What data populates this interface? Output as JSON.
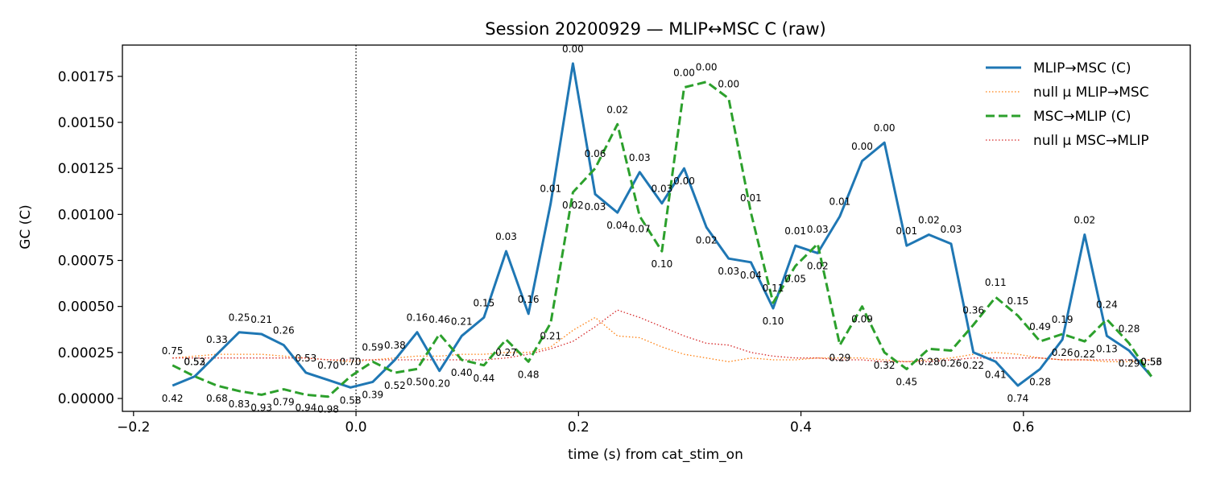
{
  "chart_data": {
    "type": "line",
    "title": "Session 20200929 — MLIP↔MSC C (raw)",
    "xlabel": "time (s) from cat_stim_on",
    "ylabel": "GC (C)",
    "xlim": [
      -0.21,
      0.75
    ],
    "ylim": [
      -7e-05,
      0.00192
    ],
    "x_ticks": [
      -0.2,
      0.0,
      0.2,
      0.4,
      0.6
    ],
    "x_tick_labels": [
      "−0.2",
      "0.0",
      "0.2",
      "0.4",
      "0.6"
    ],
    "y_ticks": [
      0.0,
      0.00025,
      0.0005,
      0.00075,
      0.001,
      0.00125,
      0.0015,
      0.00175
    ],
    "y_tick_labels": [
      "0.00000",
      "0.00025",
      "0.00050",
      "0.00075",
      "0.00100",
      "0.00125",
      "0.00150",
      "0.00175"
    ],
    "grid": false,
    "event_line_x": 0.0,
    "legend_position": "upper-right",
    "x": [
      -0.165,
      -0.145,
      -0.125,
      -0.105,
      -0.085,
      -0.065,
      -0.045,
      -0.025,
      -0.005,
      0.015,
      0.035,
      0.055,
      0.075,
      0.095,
      0.115,
      0.135,
      0.155,
      0.175,
      0.195,
      0.215,
      0.235,
      0.255,
      0.275,
      0.295,
      0.315,
      0.335,
      0.355,
      0.375,
      0.395,
      0.415,
      0.435,
      0.455,
      0.475,
      0.495,
      0.515,
      0.535,
      0.555,
      0.575,
      0.595,
      0.615,
      0.635,
      0.655,
      0.675,
      0.695,
      0.715
    ],
    "series": [
      {
        "name": "MLIP→MSC (C)",
        "color": "#1f77b4",
        "style": "solid",
        "values": [
          7e-05,
          0.00012,
          0.00024,
          0.00036,
          0.00035,
          0.00029,
          0.00014,
          0.0001,
          6e-05,
          9e-05,
          0.00021,
          0.00036,
          0.00015,
          0.00034,
          0.00044,
          0.0008,
          0.00046,
          0.00106,
          0.00182,
          0.00111,
          0.00101,
          0.00123,
          0.00106,
          0.00125,
          0.00093,
          0.00076,
          0.00074,
          0.00049,
          0.00083,
          0.00079,
          0.00099,
          0.00129,
          0.00139,
          0.00083,
          0.00089,
          0.00084,
          0.00025,
          0.0002,
          7e-05,
          0.00016,
          0.00032,
          0.00089,
          0.00034,
          0.00026,
          0.00012
        ],
        "p_values": [
          "0.42",
          "0.53",
          "0.33",
          "0.25",
          "0.21",
          "0.26",
          "0.53",
          "0.70",
          "0.58",
          "0.39",
          "0.38",
          "0.16",
          "0.20",
          "0.21",
          "0.15",
          "0.03",
          "0.16",
          "0.01",
          "0.00",
          "0.03",
          "0.04",
          "0.03",
          "0.03",
          "0.00",
          "0.02",
          "0.03",
          "0.04",
          "0.10",
          "0.01",
          "0.02",
          "0.01",
          "0.00",
          "0.00",
          "0.01",
          "0.02",
          "0.03",
          "0.22",
          "0.41",
          "0.74",
          "0.28",
          "0.26",
          "0.02",
          "0.13",
          "0.29",
          "0.53"
        ]
      },
      {
        "name": "null μ MLIP→MSC",
        "color": "#ff7f0e",
        "style": "dotted",
        "values": [
          0.00022,
          0.00023,
          0.00024,
          0.00024,
          0.00024,
          0.00023,
          0.00022,
          0.00021,
          0.0002,
          0.00021,
          0.00022,
          0.00023,
          0.00023,
          0.00024,
          0.00024,
          0.00025,
          0.00025,
          0.00028,
          0.00037,
          0.00044,
          0.00034,
          0.00033,
          0.00028,
          0.00024,
          0.00022,
          0.0002,
          0.00022,
          0.00021,
          0.00021,
          0.00022,
          0.00022,
          0.00022,
          0.00021,
          0.0002,
          0.00021,
          0.00022,
          0.00024,
          0.00025,
          0.00024,
          0.00022,
          0.00021,
          0.00021,
          0.0002,
          0.0002,
          0.00021
        ]
      },
      {
        "name": "MSC→MLIP (C)",
        "color": "#2ca02c",
        "style": "dashed",
        "values": [
          0.00018,
          0.00012,
          7e-05,
          4e-05,
          2e-05,
          5e-05,
          2e-05,
          1e-05,
          0.00012,
          0.0002,
          0.00014,
          0.00016,
          0.00035,
          0.00021,
          0.00018,
          0.00032,
          0.0002,
          0.00041,
          0.00112,
          0.00125,
          0.00149,
          0.00099,
          0.0008,
          0.00169,
          0.00172,
          0.00163,
          0.00101,
          0.00052,
          0.00072,
          0.00084,
          0.00029,
          0.0005,
          0.00025,
          0.00016,
          0.00027,
          0.00026,
          0.0004,
          0.00055,
          0.00045,
          0.00031,
          0.00035,
          0.00031,
          0.00043,
          0.0003,
          0.00012
        ],
        "p_values": [
          "0.75",
          "0.52",
          "0.68",
          "0.83",
          "0.93",
          "0.79",
          "0.94",
          "0.98",
          "0.70",
          "0.59",
          "0.52",
          "0.50",
          "0.46",
          "0.40",
          "0.44",
          "0.27",
          "0.48",
          "0.21",
          "0.02",
          "0.06",
          "0.02",
          "0.07",
          "0.10",
          "0.00",
          "0.00",
          "0.00",
          "0.01",
          "0.11",
          "0.05",
          "0.03",
          "0.29",
          "0.09",
          "0.32",
          "0.45",
          "0.28",
          "0.26",
          "0.36",
          "0.11",
          "0.15",
          "0.49",
          "0.19",
          "0.22",
          "0.24",
          "0.28",
          "0.56"
        ]
      },
      {
        "name": "null μ MSC→MLIP",
        "color": "#d62728",
        "style": "dotted",
        "values": [
          0.00022,
          0.00022,
          0.00022,
          0.00022,
          0.00022,
          0.00022,
          0.00022,
          0.00021,
          0.00021,
          0.00021,
          0.00021,
          0.00021,
          0.00021,
          0.00021,
          0.00021,
          0.00022,
          0.00024,
          0.00027,
          0.00031,
          0.00039,
          0.00048,
          0.00044,
          0.00039,
          0.00034,
          0.0003,
          0.00029,
          0.00025,
          0.00023,
          0.00022,
          0.00022,
          0.00021,
          0.00021,
          0.0002,
          0.0002,
          0.0002,
          0.00021,
          0.00022,
          0.00022,
          0.00022,
          0.00022,
          0.00021,
          0.00021,
          0.00021,
          0.00021,
          0.00021
        ]
      }
    ]
  }
}
